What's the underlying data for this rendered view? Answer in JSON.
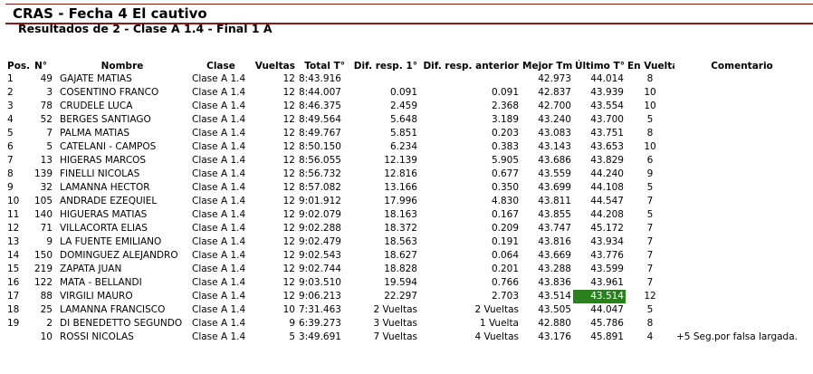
{
  "header": {
    "title": "CRAS - Fecha 4 El cautivo",
    "subtitle": "Resultados de 2 - Clase A 1.4 - Final 1 A"
  },
  "columns": {
    "pos": "Pos.",
    "num": "N°",
    "name": "Nombre",
    "class": "Clase",
    "laps": "Vueltas",
    "total": "Total T°",
    "gap_first": "Dif. resp. 1°",
    "gap_prev": "Dif. resp. anterior",
    "best": "Mejor Tm",
    "last": "Último T°",
    "on_lap": "En Vuelta",
    "comment": "Comentario"
  },
  "colors": {
    "title_rule": "#8b1a1a",
    "highlight": "#2a7f1e"
  },
  "rows": [
    {
      "pos": "1",
      "num": "49",
      "name": "GAJATE MATIAS",
      "class": "Clase A 1.4",
      "laps": "12",
      "total": "8:43.916",
      "gap_first": "",
      "gap_prev": "",
      "best": "42.973",
      "last": "44.014",
      "on_lap": "8",
      "comment": ""
    },
    {
      "pos": "2",
      "num": "3",
      "name": "COSENTINO FRANCO",
      "class": "Clase A 1.4",
      "laps": "12",
      "total": "8:44.007",
      "gap_first": "0.091",
      "gap_prev": "0.091",
      "best": "42.837",
      "last": "43.939",
      "on_lap": "10",
      "comment": ""
    },
    {
      "pos": "3",
      "num": "78",
      "name": "CRUDELE LUCA",
      "class": "Clase A 1.4",
      "laps": "12",
      "total": "8:46.375",
      "gap_first": "2.459",
      "gap_prev": "2.368",
      "best": "42.700",
      "last": "43.554",
      "on_lap": "10",
      "comment": ""
    },
    {
      "pos": "4",
      "num": "52",
      "name": "BERGES SANTIAGO",
      "class": "Clase A 1.4",
      "laps": "12",
      "total": "8:49.564",
      "gap_first": "5.648",
      "gap_prev": "3.189",
      "best": "43.240",
      "last": "43.700",
      "on_lap": "5",
      "comment": ""
    },
    {
      "pos": "5",
      "num": "7",
      "name": "PALMA MATIAS",
      "class": "Clase A 1.4",
      "laps": "12",
      "total": "8:49.767",
      "gap_first": "5.851",
      "gap_prev": "0.203",
      "best": "43.083",
      "last": "43.751",
      "on_lap": "8",
      "comment": ""
    },
    {
      "pos": "6",
      "num": "5",
      "name": "CATELANI - CAMPOS",
      "class": "Clase A 1.4",
      "laps": "12",
      "total": "8:50.150",
      "gap_first": "6.234",
      "gap_prev": "0.383",
      "best": "43.143",
      "last": "43.653",
      "on_lap": "10",
      "comment": ""
    },
    {
      "pos": "7",
      "num": "13",
      "name": "HIGERAS MARCOS",
      "class": "Clase A 1.4",
      "laps": "12",
      "total": "8:56.055",
      "gap_first": "12.139",
      "gap_prev": "5.905",
      "best": "43.686",
      "last": "43.829",
      "on_lap": "6",
      "comment": ""
    },
    {
      "pos": "8",
      "num": "139",
      "name": "FINELLI NICOLAS",
      "class": "Clase A 1.4",
      "laps": "12",
      "total": "8:56.732",
      "gap_first": "12.816",
      "gap_prev": "0.677",
      "best": "43.559",
      "last": "44.240",
      "on_lap": "9",
      "comment": ""
    },
    {
      "pos": "9",
      "num": "32",
      "name": "LAMANNA HECTOR",
      "class": "Clase A 1.4",
      "laps": "12",
      "total": "8:57.082",
      "gap_first": "13.166",
      "gap_prev": "0.350",
      "best": "43.699",
      "last": "44.108",
      "on_lap": "5",
      "comment": ""
    },
    {
      "pos": "10",
      "num": "105",
      "name": "ANDRADE EZEQUIEL",
      "class": "Clase A 1.4",
      "laps": "12",
      "total": "9:01.912",
      "gap_first": "17.996",
      "gap_prev": "4.830",
      "best": "43.811",
      "last": "44.547",
      "on_lap": "7",
      "comment": ""
    },
    {
      "pos": "11",
      "num": "140",
      "name": "HIGUERAS MATIAS",
      "class": "Clase A 1.4",
      "laps": "12",
      "total": "9:02.079",
      "gap_first": "18.163",
      "gap_prev": "0.167",
      "best": "43.855",
      "last": "44.208",
      "on_lap": "5",
      "comment": ""
    },
    {
      "pos": "12",
      "num": "71",
      "name": "VILLACORTA ELIAS",
      "class": "Clase A 1.4",
      "laps": "12",
      "total": "9:02.288",
      "gap_first": "18.372",
      "gap_prev": "0.209",
      "best": "43.747",
      "last": "45.172",
      "on_lap": "7",
      "comment": ""
    },
    {
      "pos": "13",
      "num": "9",
      "name": "LA FUENTE EMILIANO",
      "class": "Clase A 1.4",
      "laps": "12",
      "total": "9:02.479",
      "gap_first": "18.563",
      "gap_prev": "0.191",
      "best": "43.816",
      "last": "43.934",
      "on_lap": "7",
      "comment": ""
    },
    {
      "pos": "14",
      "num": "150",
      "name": "DOMINGUEZ ALEJANDRO",
      "class": "Clase A 1.4",
      "laps": "12",
      "total": "9:02.543",
      "gap_first": "18.627",
      "gap_prev": "0.064",
      "best": "43.669",
      "last": "43.776",
      "on_lap": "7",
      "comment": ""
    },
    {
      "pos": "15",
      "num": "219",
      "name": "ZAPATA JUAN",
      "class": "Clase A 1.4",
      "laps": "12",
      "total": "9:02.744",
      "gap_first": "18.828",
      "gap_prev": "0.201",
      "best": "43.288",
      "last": "43.599",
      "on_lap": "7",
      "comment": ""
    },
    {
      "pos": "16",
      "num": "122",
      "name": "MATA - BELLANDI",
      "class": "Clase A 1.4",
      "laps": "12",
      "total": "9:03.510",
      "gap_first": "19.594",
      "gap_prev": "0.766",
      "best": "43.836",
      "last": "43.961",
      "on_lap": "7",
      "comment": ""
    },
    {
      "pos": "17",
      "num": "88",
      "name": "VIRGILI MAURO",
      "class": "Clase A 1.4",
      "laps": "12",
      "total": "9:06.213",
      "gap_first": "22.297",
      "gap_prev": "2.703",
      "best": "43.514",
      "last": "43.514",
      "on_lap": "12",
      "comment": "",
      "highlight_last": true
    },
    {
      "pos": "18",
      "num": "25",
      "name": "LAMANNA FRANCISCO",
      "class": "Clase A 1.4",
      "laps": "10",
      "total": "7:31.463",
      "gap_first": "2 Vueltas",
      "gap_prev": "2 Vueltas",
      "best": "43.505",
      "last": "44.047",
      "on_lap": "5",
      "comment": ""
    },
    {
      "pos": "19",
      "num": "2",
      "name": "DI BENEDETTO SEGUNDO",
      "class": "Clase A 1.4",
      "laps": "9",
      "total": "6:39.273",
      "gap_first": "3 Vueltas",
      "gap_prev": "1 Vuelta",
      "best": "42.880",
      "last": "45.786",
      "on_lap": "8",
      "comment": ""
    },
    {
      "pos": "",
      "num": "10",
      "name": "ROSSI NICOLAS",
      "class": "Clase A 1.4",
      "laps": "5",
      "total": "3:49.691",
      "gap_first": "7 Vueltas",
      "gap_prev": "4 Vueltas",
      "best": "43.176",
      "last": "45.891",
      "on_lap": "4",
      "comment": "+5 Seg.por falsa largada."
    }
  ]
}
